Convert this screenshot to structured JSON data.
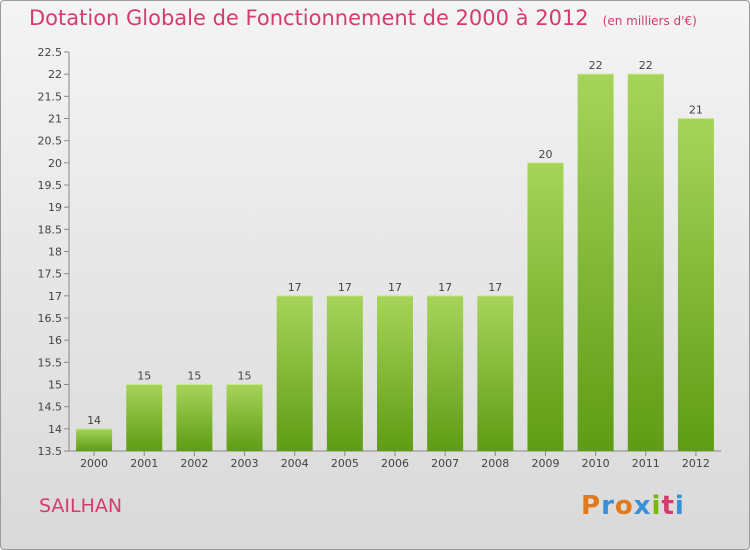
{
  "header": {
    "title": "Dotation Globale de Fonctionnement de 2000 à 2012",
    "unit": "(en milliers d'€)"
  },
  "place": "SAILHAN",
  "logo": {
    "text": "Proxiti",
    "letter_colors": [
      "#e07a1c",
      "#3a8fd6",
      "#e07a1c",
      "#3a8fd6",
      "#7ab800",
      "#d53b6e",
      "#3a8fd6"
    ]
  },
  "colors": {
    "bar_light": "#a6d45a",
    "bar_dark": "#5f9c14",
    "title": "#d53b6e"
  },
  "chart_data": {
    "type": "bar",
    "categories": [
      "2000",
      "2001",
      "2002",
      "2003",
      "2004",
      "2005",
      "2006",
      "2007",
      "2008",
      "2009",
      "2010",
      "2011",
      "2012"
    ],
    "values": [
      14,
      15,
      15,
      15,
      17,
      17,
      17,
      17,
      17,
      20,
      22,
      22,
      21
    ],
    "ylim": [
      13.5,
      22.5
    ],
    "yticks": [
      13.5,
      14,
      14.5,
      15,
      15.5,
      16,
      16.5,
      17,
      17.5,
      18,
      18.5,
      19,
      19.5,
      20,
      20.5,
      21,
      21.5,
      22,
      22.5
    ],
    "grid": false,
    "title": "Dotation Globale de Fonctionnement de 2000 à 2012",
    "xlabel": "",
    "ylabel": ""
  }
}
